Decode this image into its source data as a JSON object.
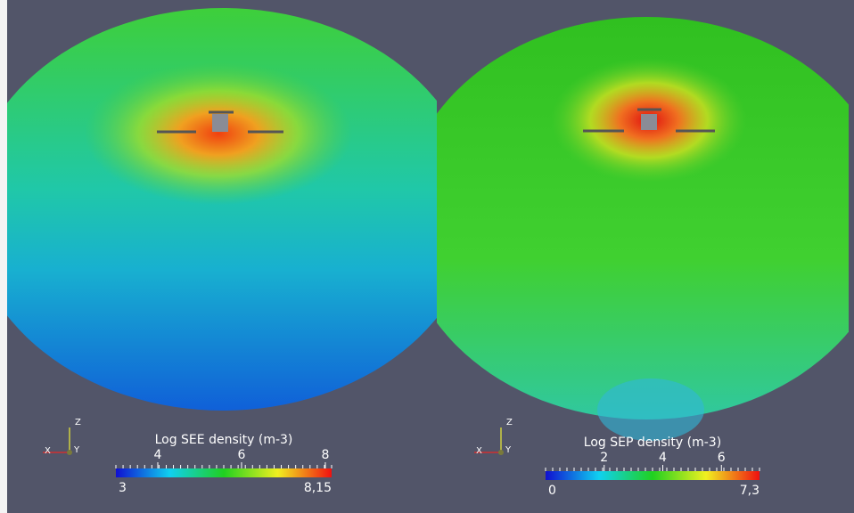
{
  "panels": [
    {
      "colorbar": {
        "title": "Log SEE density (m-3)",
        "ticks": [
          4,
          6,
          8
        ],
        "range": [
          {
            "value": 3,
            "label": "3"
          },
          {
            "value": 8.15,
            "label": "8,15"
          }
        ]
      },
      "axes": {
        "x": "X",
        "y": "Y",
        "z": "Z"
      }
    },
    {
      "colorbar": {
        "title": "Log SEP density (m-3)",
        "ticks": [
          2,
          4,
          6
        ],
        "range": [
          {
            "value": 0,
            "label": "0"
          },
          {
            "value": 7.3,
            "label": "7,3"
          }
        ]
      },
      "axes": {
        "x": "X",
        "y": "Y",
        "z": "Z"
      }
    }
  ]
}
